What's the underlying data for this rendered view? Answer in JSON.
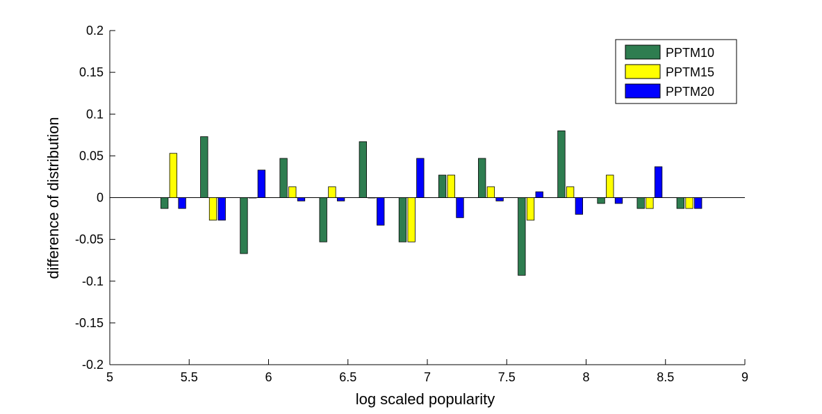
{
  "chart_data": {
    "type": "bar",
    "xlabel": "log scaled popularity",
    "ylabel": "difference of distribution",
    "xlim": [
      5,
      9
    ],
    "ylim": [
      -0.2,
      0.2
    ],
    "x_ticks": [
      5,
      5.5,
      6,
      6.5,
      7,
      7.5,
      8,
      8.5,
      9
    ],
    "x_tick_labels": [
      "5",
      "5.5",
      "6",
      "6.5",
      "7",
      "7.5",
      "8",
      "8.5",
      "9"
    ],
    "y_ticks": [
      -0.2,
      -0.15,
      -0.1,
      -0.05,
      0,
      0.05,
      0.1,
      0.15,
      0.2
    ],
    "y_tick_labels": [
      "-0.2",
      "-0.15",
      "-0.1",
      "-0.05",
      "0",
      "0.05",
      "0.1",
      "0.15",
      "0.2"
    ],
    "x": [
      5.4,
      5.65,
      5.9,
      6.15,
      6.4,
      6.65,
      6.9,
      7.15,
      7.4,
      7.65,
      7.9,
      8.15,
      8.4,
      8.65
    ],
    "series": [
      {
        "name": "PPTM10",
        "color": "#2e7d50",
        "values": [
          -0.013,
          0.073,
          -0.067,
          0.047,
          -0.053,
          0.067,
          -0.053,
          0.027,
          0.047,
          -0.093,
          0.08,
          -0.007,
          -0.013,
          -0.013
        ]
      },
      {
        "name": "PPTM15",
        "color": "#ffff00",
        "values": [
          0.053,
          -0.027,
          0.0,
          0.013,
          0.013,
          0.0,
          -0.053,
          0.027,
          0.013,
          -0.027,
          0.013,
          0.027,
          -0.013,
          -0.013
        ]
      },
      {
        "name": "PPTM20",
        "color": "#0000ff",
        "values": [
          -0.013,
          -0.027,
          0.033,
          -0.004,
          -0.004,
          -0.033,
          0.047,
          -0.024,
          -0.004,
          0.007,
          -0.02,
          -0.007,
          0.037,
          -0.013
        ]
      }
    ],
    "legend_position": "top-right",
    "grid": false
  }
}
